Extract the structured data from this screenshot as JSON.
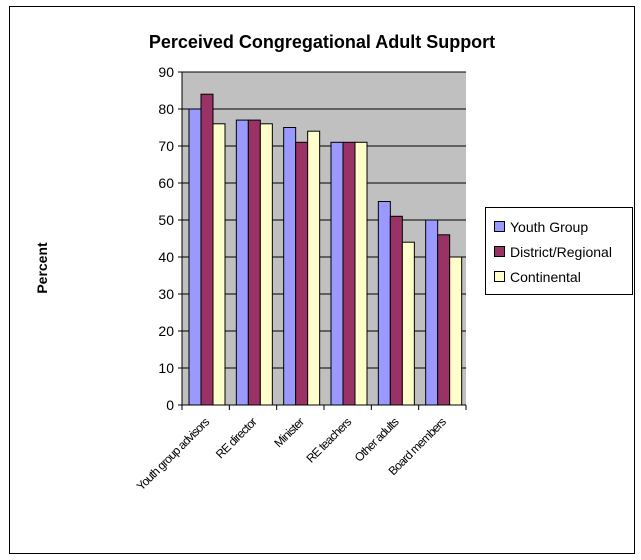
{
  "chart_data": {
    "type": "bar",
    "title": "Perceived Congregational Adult Support",
    "xlabel": "",
    "ylabel": "Percent",
    "ylim": [
      0,
      90
    ],
    "yticks": [
      0,
      10,
      20,
      30,
      40,
      50,
      60,
      70,
      80,
      90
    ],
    "grid": true,
    "legend_position": "right",
    "categories": [
      "Youth group advisors",
      "RE director",
      "Minister",
      "RE teachers",
      "Other adults",
      "Board members"
    ],
    "series": [
      {
        "name": "Youth Group",
        "color": "#9999ff",
        "values": [
          80,
          77,
          75,
          71,
          55,
          50
        ]
      },
      {
        "name": "District/Regional",
        "color": "#993366",
        "values": [
          84,
          77,
          71,
          71,
          51,
          46
        ]
      },
      {
        "name": "Continental",
        "color": "#ffffcc",
        "values": [
          76,
          76,
          74,
          71,
          44,
          40
        ]
      }
    ]
  }
}
